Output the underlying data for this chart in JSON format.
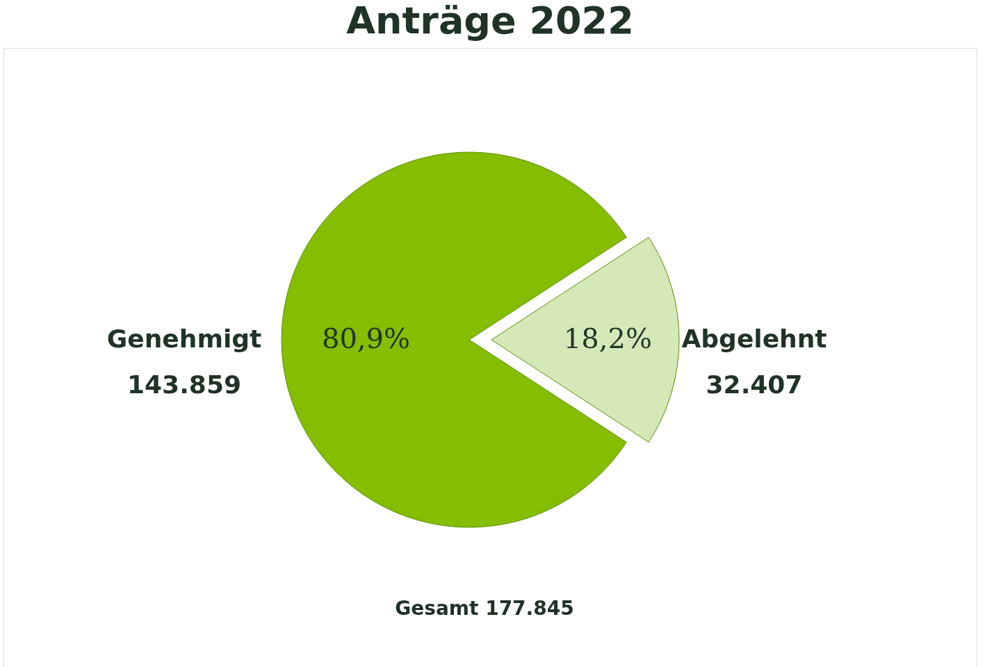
{
  "chart_data": {
    "type": "pie",
    "title": "Anträge 2022",
    "categories": [
      "Genehmigt",
      "Abgelehnt"
    ],
    "values": [
      143859,
      32407
    ],
    "value_labels": [
      "143.859",
      "32.407"
    ],
    "colors": [
      "#85bd00",
      "#d5e8b8"
    ],
    "annotations": [
      {
        "text": "80,9%",
        "x": "Genehmigt"
      },
      {
        "text": "18,2%",
        "x": "Abgelehnt"
      },
      "Gesamt 177.845"
    ]
  }
}
